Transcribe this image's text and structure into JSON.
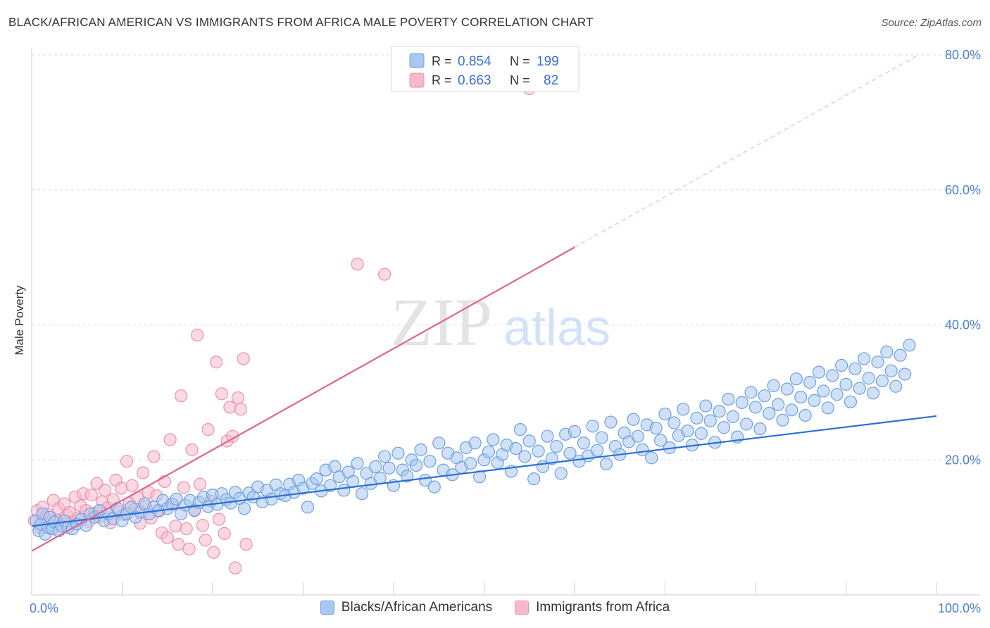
{
  "title": "BLACK/AFRICAN AMERICAN VS IMMIGRANTS FROM AFRICA MALE POVERTY CORRELATION CHART",
  "source": "Source: ZipAtlas.com",
  "watermark": {
    "zip": "ZIP",
    "atlas": "atlas"
  },
  "colors": {
    "blue_fill": "#a9c8f0",
    "blue_stroke": "#6d9fe0",
    "blue_line": "#2b6fd6",
    "pink_fill": "#f6b9cc",
    "pink_stroke": "#ec8fae",
    "pink_line": "#e0628e",
    "grid": "#d9d9d9",
    "tick_text": "#4a7fd0"
  },
  "legend": {
    "series": [
      {
        "r_label": "R =",
        "r_value": "0.854",
        "n_label": "N =",
        "n_value": "199"
      },
      {
        "r_label": "R =",
        "r_value": "0.663",
        "n_label": "N =",
        "n_value": "82"
      }
    ]
  },
  "bottom_legend": [
    "Blacks/African Americans",
    "Immigrants from Africa"
  ],
  "chart_data": {
    "type": "scatter",
    "title": "BLACK/AFRICAN AMERICAN VS IMMIGRANTS FROM AFRICA MALE POVERTY CORRELATION CHART",
    "xlabel": "",
    "ylabel": "Male Poverty",
    "xlim": [
      0,
      100
    ],
    "ylim": [
      0,
      80
    ],
    "x_ticks": [
      0,
      100
    ],
    "x_tick_labels": [
      "0.0%",
      "100.0%"
    ],
    "y_ticks": [
      20,
      40,
      60,
      80
    ],
    "y_tick_labels": [
      "20.0%",
      "40.0%",
      "60.0%",
      "80.0%"
    ],
    "grid": true,
    "legend_position": "top-center",
    "series": [
      {
        "name": "Blacks/African Americans",
        "r": 0.854,
        "n": 199,
        "trend": {
          "x0": 0,
          "y0": 10.2,
          "x1": 100,
          "y1": 26.5,
          "dashed_to": 100
        },
        "points": [
          [
            0.5,
            11
          ],
          [
            0.8,
            9.5
          ],
          [
            1,
            10.5
          ],
          [
            1.2,
            12
          ],
          [
            1.5,
            9
          ],
          [
            1.8,
            10
          ],
          [
            2,
            11.5
          ],
          [
            2.3,
            9.8
          ],
          [
            2.5,
            10.8
          ],
          [
            3,
            9.5
          ],
          [
            3.3,
            10.2
          ],
          [
            3.6,
            11
          ],
          [
            4,
            10
          ],
          [
            4.5,
            9.8
          ],
          [
            5,
            10.5
          ],
          [
            5.5,
            11.2
          ],
          [
            6,
            10.3
          ],
          [
            6.5,
            12
          ],
          [
            7,
            11.5
          ],
          [
            7.5,
            12.5
          ],
          [
            8,
            11
          ],
          [
            8.5,
            12
          ],
          [
            9,
            11.3
          ],
          [
            9.5,
            12.8
          ],
          [
            10,
            11
          ],
          [
            10.5,
            12
          ],
          [
            11,
            13
          ],
          [
            11.5,
            11.5
          ],
          [
            12,
            12.3
          ],
          [
            12.5,
            13.5
          ],
          [
            13,
            12
          ],
          [
            13.5,
            13
          ],
          [
            14,
            12.5
          ],
          [
            14.5,
            14
          ],
          [
            15,
            12.8
          ],
          [
            15.5,
            13.5
          ],
          [
            16,
            14.2
          ],
          [
            16.5,
            12
          ],
          [
            17,
            13.3
          ],
          [
            17.5,
            14
          ],
          [
            18,
            12.5
          ],
          [
            18.5,
            13.7
          ],
          [
            19,
            14.5
          ],
          [
            19.5,
            13.1
          ],
          [
            20,
            14.8
          ],
          [
            20.5,
            13.4
          ],
          [
            21,
            15
          ],
          [
            21.5,
            14.1
          ],
          [
            22,
            13.6
          ],
          [
            22.5,
            15.2
          ],
          [
            23,
            14.3
          ],
          [
            23.5,
            12.8
          ],
          [
            24,
            15.1
          ],
          [
            24.5,
            14.5
          ],
          [
            25,
            16
          ],
          [
            25.5,
            13.8
          ],
          [
            26,
            15.5
          ],
          [
            26.5,
            14.2
          ],
          [
            27,
            16.3
          ],
          [
            27.5,
            15
          ],
          [
            28,
            14.7
          ],
          [
            28.5,
            16.4
          ],
          [
            29,
            15.2
          ],
          [
            29.5,
            17
          ],
          [
            30,
            15.8
          ],
          [
            30.5,
            13
          ],
          [
            31,
            16.5
          ],
          [
            31.5,
            17.2
          ],
          [
            32,
            15.4
          ],
          [
            32.5,
            18.5
          ],
          [
            33,
            16.2
          ],
          [
            33.5,
            19
          ],
          [
            34,
            17.5
          ],
          [
            34.5,
            15.5
          ],
          [
            35,
            18.2
          ],
          [
            35.5,
            16.8
          ],
          [
            36,
            19.5
          ],
          [
            36.5,
            15
          ],
          [
            37,
            18
          ],
          [
            37.5,
            16.5
          ],
          [
            38,
            19
          ],
          [
            38.5,
            17.3
          ],
          [
            39,
            20.5
          ],
          [
            39.5,
            18.8
          ],
          [
            40,
            16.2
          ],
          [
            40.5,
            21
          ],
          [
            41,
            18.5
          ],
          [
            41.5,
            17.6
          ],
          [
            42,
            20
          ],
          [
            42.5,
            19.2
          ],
          [
            43,
            21.5
          ],
          [
            43.5,
            17
          ],
          [
            44,
            19.8
          ],
          [
            44.5,
            16
          ],
          [
            45,
            22.5
          ],
          [
            45.5,
            18.5
          ],
          [
            46,
            21
          ],
          [
            46.5,
            17.8
          ],
          [
            47,
            20.3
          ],
          [
            47.5,
            18.9
          ],
          [
            48,
            21.8
          ],
          [
            48.5,
            19.5
          ],
          [
            49,
            22.5
          ],
          [
            49.5,
            17.5
          ],
          [
            50,
            20
          ],
          [
            50.5,
            21.2
          ],
          [
            51,
            23
          ],
          [
            51.5,
            19.6
          ],
          [
            52,
            20.8
          ],
          [
            52.5,
            22.2
          ],
          [
            53,
            18.3
          ],
          [
            53.5,
            21.7
          ],
          [
            54,
            24.5
          ],
          [
            54.5,
            20.5
          ],
          [
            55,
            22.8
          ],
          [
            55.5,
            17.2
          ],
          [
            56,
            21.3
          ],
          [
            56.5,
            19
          ],
          [
            57,
            23.5
          ],
          [
            57.5,
            20.2
          ],
          [
            58,
            22
          ],
          [
            58.5,
            18
          ],
          [
            59,
            23.8
          ],
          [
            59.5,
            21
          ],
          [
            60,
            24.2
          ],
          [
            60.5,
            19.8
          ],
          [
            61,
            22.5
          ],
          [
            61.5,
            20.6
          ],
          [
            62,
            25
          ],
          [
            62.5,
            21.4
          ],
          [
            63,
            23.3
          ],
          [
            63.5,
            19.4
          ],
          [
            64,
            25.6
          ],
          [
            64.5,
            22
          ],
          [
            65,
            20.8
          ],
          [
            65.5,
            24
          ],
          [
            66,
            22.7
          ],
          [
            66.5,
            26
          ],
          [
            67,
            23.5
          ],
          [
            67.5,
            21.5
          ],
          [
            68,
            25.2
          ],
          [
            68.5,
            20.3
          ],
          [
            69,
            24.7
          ],
          [
            69.5,
            22.9
          ],
          [
            70,
            26.8
          ],
          [
            70.5,
            21.8
          ],
          [
            71,
            25.5
          ],
          [
            71.5,
            23.6
          ],
          [
            72,
            27.5
          ],
          [
            72.5,
            24.3
          ],
          [
            73,
            22.2
          ],
          [
            73.5,
            26.2
          ],
          [
            74,
            23.9
          ],
          [
            74.5,
            28
          ],
          [
            75,
            25.8
          ],
          [
            75.5,
            22.6
          ],
          [
            76,
            27.2
          ],
          [
            76.5,
            24.8
          ],
          [
            77,
            29
          ],
          [
            77.5,
            26.4
          ],
          [
            78,
            23.4
          ],
          [
            78.5,
            28.5
          ],
          [
            79,
            25.3
          ],
          [
            79.5,
            30
          ],
          [
            80,
            27.8
          ],
          [
            80.5,
            24.6
          ],
          [
            81,
            29.5
          ],
          [
            81.5,
            26.9
          ],
          [
            82,
            31
          ],
          [
            82.5,
            28.2
          ],
          [
            83,
            25.9
          ],
          [
            83.5,
            30.5
          ],
          [
            84,
            27.4
          ],
          [
            84.5,
            32
          ],
          [
            85,
            29.3
          ],
          [
            85.5,
            26.6
          ],
          [
            86,
            31.5
          ],
          [
            86.5,
            28.8
          ],
          [
            87,
            33
          ],
          [
            87.5,
            30.2
          ],
          [
            88,
            27.7
          ],
          [
            88.5,
            32.5
          ],
          [
            89,
            29.7
          ],
          [
            89.5,
            34
          ],
          [
            90,
            31.2
          ],
          [
            90.5,
            28.6
          ],
          [
            91,
            33.5
          ],
          [
            91.5,
            30.6
          ],
          [
            92,
            35
          ],
          [
            92.5,
            32.1
          ],
          [
            93,
            29.9
          ],
          [
            93.5,
            34.5
          ],
          [
            94,
            31.7
          ],
          [
            94.5,
            36
          ],
          [
            95,
            33.2
          ],
          [
            95.5,
            30.9
          ],
          [
            96,
            35.5
          ],
          [
            96.5,
            32.7
          ],
          [
            97,
            37
          ]
        ]
      },
      {
        "name": "Immigrants from Africa",
        "r": 0.663,
        "n": 82,
        "trend": {
          "x0": 0,
          "y0": 6.5,
          "x1": 60,
          "y1": 51.5,
          "dashed_to": 100
        },
        "points": [
          [
            0.3,
            11
          ],
          [
            0.6,
            12.5
          ],
          [
            0.9,
            10
          ],
          [
            1.2,
            13
          ],
          [
            1.5,
            11.5
          ],
          [
            1.8,
            12
          ],
          [
            2.1,
            9.8
          ],
          [
            2.4,
            14
          ],
          [
            2.7,
            11
          ],
          [
            3,
            12.8
          ],
          [
            3.3,
            10.5
          ],
          [
            3.6,
            13.5
          ],
          [
            3.9,
            11.8
          ],
          [
            4.2,
            12.2
          ],
          [
            4.5,
            10.8
          ],
          [
            4.8,
            14.5
          ],
          [
            5.1,
            11.3
          ],
          [
            5.4,
            13.2
          ],
          [
            5.7,
            15
          ],
          [
            6,
            12.5
          ],
          [
            6.3,
            10.9
          ],
          [
            6.6,
            14.8
          ],
          [
            6.9,
            12.1
          ],
          [
            7.2,
            16.5
          ],
          [
            7.5,
            11.6
          ],
          [
            7.8,
            13.8
          ],
          [
            8.1,
            15.5
          ],
          [
            8.4,
            12.9
          ],
          [
            8.7,
            10.7
          ],
          [
            9,
            14.1
          ],
          [
            9.3,
            17
          ],
          [
            9.6,
            12.3
          ],
          [
            9.9,
            15.8
          ],
          [
            10.2,
            11.9
          ],
          [
            10.5,
            19.8
          ],
          [
            10.8,
            13.6
          ],
          [
            11.1,
            16.2
          ],
          [
            11.4,
            12.7
          ],
          [
            11.7,
            14.4
          ],
          [
            12,
            10.6
          ],
          [
            12.3,
            18.1
          ],
          [
            12.6,
            13.1
          ],
          [
            12.9,
            15.2
          ],
          [
            13.2,
            11.4
          ],
          [
            13.5,
            20.5
          ],
          [
            13.8,
            14.7
          ],
          [
            14.1,
            12.4
          ],
          [
            14.4,
            9.2
          ],
          [
            14.7,
            16.8
          ],
          [
            15,
            8.5
          ],
          [
            15.3,
            23
          ],
          [
            15.6,
            13.4
          ],
          [
            15.9,
            10.2
          ],
          [
            16.2,
            7.5
          ],
          [
            16.5,
            29.5
          ],
          [
            16.8,
            15.9
          ],
          [
            17.1,
            9.8
          ],
          [
            17.4,
            6.8
          ],
          [
            17.7,
            21.5
          ],
          [
            18,
            12.6
          ],
          [
            18.3,
            38.5
          ],
          [
            18.6,
            16.4
          ],
          [
            18.9,
            10.3
          ],
          [
            19.2,
            8.1
          ],
          [
            19.5,
            24.5
          ],
          [
            19.8,
            13.9
          ],
          [
            20.1,
            6.3
          ],
          [
            20.4,
            34.5
          ],
          [
            20.7,
            11.2
          ],
          [
            21,
            29.8
          ],
          [
            21.3,
            9.1
          ],
          [
            21.6,
            22.8
          ],
          [
            21.9,
            27.8
          ],
          [
            22.2,
            23.5
          ],
          [
            22.5,
            4
          ],
          [
            22.8,
            29.2
          ],
          [
            23.1,
            27.5
          ],
          [
            23.4,
            35
          ],
          [
            23.7,
            7.5
          ],
          [
            36,
            49
          ],
          [
            39,
            47.5
          ],
          [
            55,
            75
          ]
        ]
      }
    ]
  }
}
